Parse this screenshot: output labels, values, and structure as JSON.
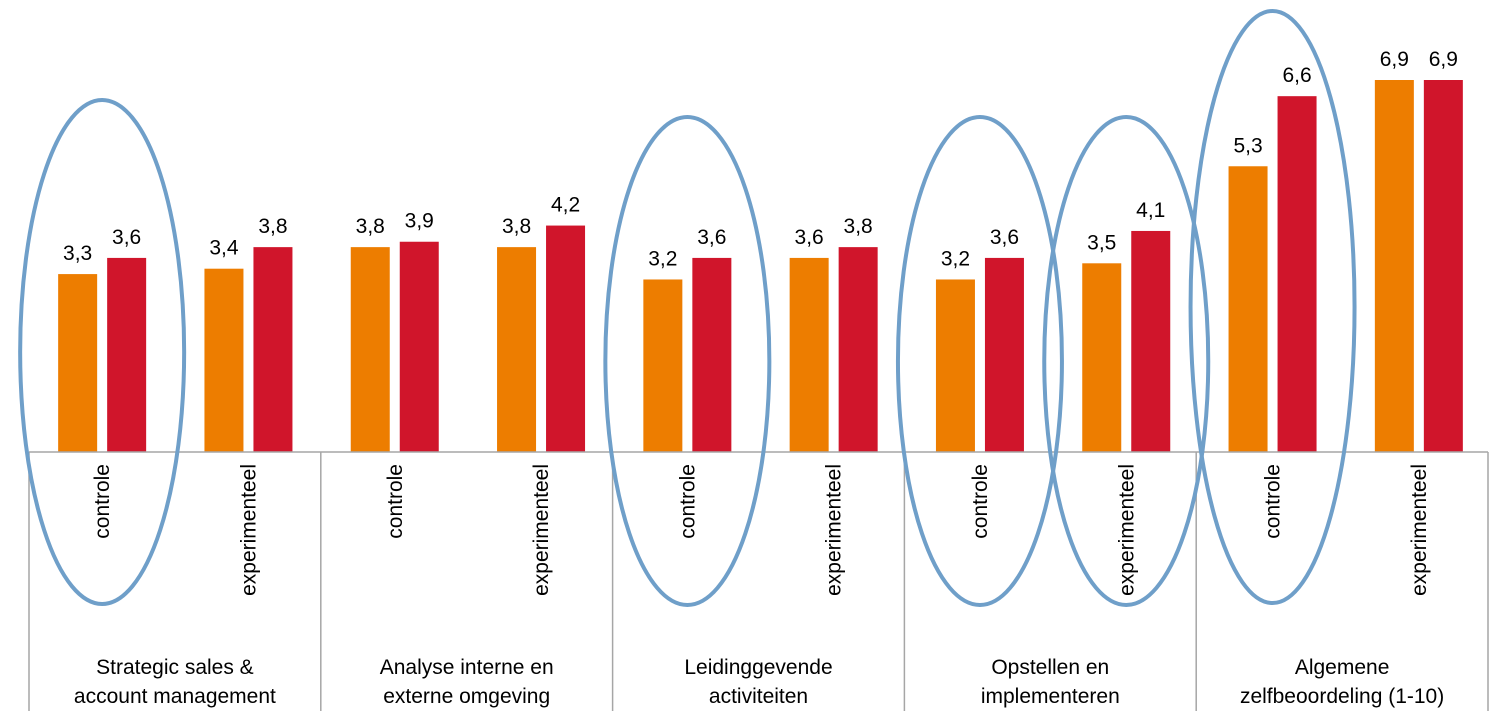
{
  "chart_data": {
    "type": "bar",
    "groups": [
      {
        "label_lines": [
          "Strategic sales &",
          "account management"
        ],
        "subcategories": [
          "controle",
          "experimenteel"
        ]
      },
      {
        "label_lines": [
          "Analyse interne en",
          "externe omgeving"
        ],
        "subcategories": [
          "controle",
          "experimenteel"
        ]
      },
      {
        "label_lines": [
          "Leidinggevende",
          "activiteiten"
        ],
        "subcategories": [
          "controle",
          "experimenteel"
        ]
      },
      {
        "label_lines": [
          "Opstellen en",
          "implementeren"
        ],
        "subcategories": [
          "controle",
          "experimenteel"
        ]
      },
      {
        "label_lines": [
          "Algemene",
          "zelfbeoordeling (1-10)"
        ],
        "subcategories": [
          "controle",
          "experimenteel"
        ]
      }
    ],
    "series": [
      {
        "color": "#ED7D00",
        "values": [
          3.3,
          3.4,
          3.8,
          3.8,
          3.2,
          3.6,
          3.2,
          3.5,
          5.3,
          6.9
        ],
        "labels": [
          "3,3",
          "3,4",
          "3,8",
          "3,8",
          "3,2",
          "3,6",
          "3,2",
          "3,5",
          "5,3",
          "6,9"
        ]
      },
      {
        "color": "#D0152B",
        "values": [
          3.6,
          3.8,
          3.9,
          4.2,
          3.6,
          3.8,
          3.6,
          4.1,
          6.6,
          6.9
        ],
        "labels": [
          "3,6",
          "3,8",
          "3,9",
          "4,2",
          "3,6",
          "3,8",
          "3,6",
          "4,1",
          "6,6",
          "6,9"
        ]
      }
    ],
    "highlighted_columns": [
      0,
      4,
      6,
      7,
      8
    ],
    "highlight_color": "#6F9FC9",
    "axis_color": "#A6A6A6",
    "ylim": [
      0,
      7.2
    ]
  }
}
